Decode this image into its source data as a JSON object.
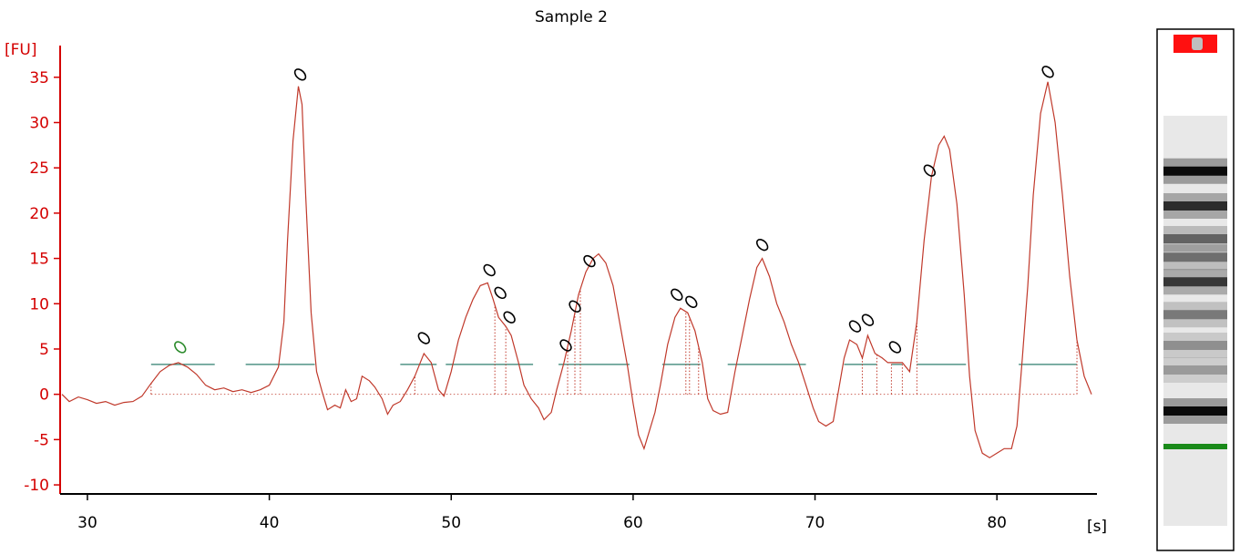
{
  "chart_data": {
    "type": "line",
    "title": "Sample 2",
    "y_unit": "[FU]",
    "x_unit": "[s]",
    "xlim": [
      28.5,
      85.5
    ],
    "ylim": [
      -11,
      38.5
    ],
    "xticks": [
      30,
      40,
      50,
      60,
      70,
      80
    ],
    "yticks": [
      -10,
      -5,
      0,
      5,
      10,
      15,
      20,
      25,
      30,
      35
    ],
    "line_color": "#c0392b",
    "axis_color": "#d40000",
    "series": [
      {
        "values": [
          [
            28.6,
            0.0
          ],
          [
            29.0,
            -0.8
          ],
          [
            29.5,
            -0.3
          ],
          [
            30.0,
            -0.6
          ],
          [
            30.5,
            -1.0
          ],
          [
            31.0,
            -0.8
          ],
          [
            31.5,
            -1.2
          ],
          [
            32.0,
            -0.9
          ],
          [
            32.5,
            -0.8
          ],
          [
            33.0,
            -0.2
          ],
          [
            33.5,
            1.2
          ],
          [
            34.0,
            2.5
          ],
          [
            34.5,
            3.2
          ],
          [
            35.0,
            3.5
          ],
          [
            35.5,
            3.0
          ],
          [
            36.0,
            2.2
          ],
          [
            36.5,
            1.0
          ],
          [
            37.0,
            0.5
          ],
          [
            37.5,
            0.7
          ],
          [
            38.0,
            0.3
          ],
          [
            38.5,
            0.5
          ],
          [
            39.0,
            0.2
          ],
          [
            39.5,
            0.5
          ],
          [
            40.0,
            1.0
          ],
          [
            40.5,
            3.0
          ],
          [
            40.8,
            8.0
          ],
          [
            41.0,
            17.0
          ],
          [
            41.3,
            28.0
          ],
          [
            41.6,
            34.0
          ],
          [
            41.8,
            32.0
          ],
          [
            42.0,
            22.0
          ],
          [
            42.3,
            9.0
          ],
          [
            42.6,
            2.5
          ],
          [
            42.9,
            0.3
          ],
          [
            43.2,
            -1.7
          ],
          [
            43.6,
            -1.2
          ],
          [
            43.9,
            -1.5
          ],
          [
            44.2,
            0.5
          ],
          [
            44.5,
            -0.8
          ],
          [
            44.8,
            -0.5
          ],
          [
            45.1,
            2.0
          ],
          [
            45.5,
            1.5
          ],
          [
            45.8,
            0.8
          ],
          [
            46.2,
            -0.5
          ],
          [
            46.5,
            -2.2
          ],
          [
            46.8,
            -1.2
          ],
          [
            47.2,
            -0.8
          ],
          [
            47.6,
            0.5
          ],
          [
            48.0,
            2.0
          ],
          [
            48.5,
            4.5
          ],
          [
            48.9,
            3.5
          ],
          [
            49.3,
            0.5
          ],
          [
            49.6,
            -0.2
          ],
          [
            50.0,
            2.5
          ],
          [
            50.4,
            6.0
          ],
          [
            50.8,
            8.5
          ],
          [
            51.2,
            10.5
          ],
          [
            51.6,
            12.0
          ],
          [
            52.0,
            12.3
          ],
          [
            52.3,
            10.5
          ],
          [
            52.6,
            8.5
          ],
          [
            53.0,
            7.5
          ],
          [
            53.3,
            6.5
          ],
          [
            53.7,
            3.5
          ],
          [
            54.0,
            1.0
          ],
          [
            54.4,
            -0.5
          ],
          [
            54.8,
            -1.5
          ],
          [
            55.1,
            -2.8
          ],
          [
            55.5,
            -2.0
          ],
          [
            55.8,
            0.5
          ],
          [
            56.2,
            3.5
          ],
          [
            56.6,
            7.0
          ],
          [
            57.0,
            11.0
          ],
          [
            57.4,
            13.5
          ],
          [
            57.8,
            15.0
          ],
          [
            58.1,
            15.5
          ],
          [
            58.5,
            14.5
          ],
          [
            58.9,
            12.0
          ],
          [
            59.3,
            7.5
          ],
          [
            59.7,
            3.0
          ],
          [
            60.0,
            -1.0
          ],
          [
            60.3,
            -4.5
          ],
          [
            60.6,
            -6.0
          ],
          [
            60.9,
            -4.0
          ],
          [
            61.2,
            -2.0
          ],
          [
            61.5,
            1.0
          ],
          [
            61.9,
            5.5
          ],
          [
            62.3,
            8.5
          ],
          [
            62.6,
            9.5
          ],
          [
            63.0,
            9.0
          ],
          [
            63.4,
            7.0
          ],
          [
            63.8,
            3.5
          ],
          [
            64.1,
            -0.5
          ],
          [
            64.4,
            -1.8
          ],
          [
            64.8,
            -2.2
          ],
          [
            65.2,
            -2.0
          ],
          [
            65.6,
            2.5
          ],
          [
            66.0,
            6.5
          ],
          [
            66.4,
            10.5
          ],
          [
            66.8,
            14.0
          ],
          [
            67.1,
            15.0
          ],
          [
            67.5,
            13.0
          ],
          [
            67.9,
            10.0
          ],
          [
            68.3,
            8.0
          ],
          [
            68.7,
            5.5
          ],
          [
            69.1,
            3.5
          ],
          [
            69.5,
            1.0
          ],
          [
            69.9,
            -1.5
          ],
          [
            70.2,
            -3.0
          ],
          [
            70.6,
            -3.5
          ],
          [
            71.0,
            -3.0
          ],
          [
            71.3,
            0.5
          ],
          [
            71.6,
            4.0
          ],
          [
            71.9,
            6.0
          ],
          [
            72.3,
            5.5
          ],
          [
            72.6,
            4.0
          ],
          [
            72.9,
            6.5
          ],
          [
            73.3,
            4.5
          ],
          [
            73.7,
            4.0
          ],
          [
            74.0,
            3.5
          ],
          [
            74.4,
            3.5
          ],
          [
            74.8,
            3.5
          ],
          [
            75.2,
            2.5
          ],
          [
            75.6,
            8.0
          ],
          [
            76.0,
            17.0
          ],
          [
            76.4,
            24.0
          ],
          [
            76.8,
            27.5
          ],
          [
            77.1,
            28.5
          ],
          [
            77.4,
            27.0
          ],
          [
            77.8,
            21.0
          ],
          [
            78.2,
            11.0
          ],
          [
            78.5,
            2.0
          ],
          [
            78.8,
            -4.0
          ],
          [
            79.2,
            -6.5
          ],
          [
            79.6,
            -7.0
          ],
          [
            80.0,
            -6.5
          ],
          [
            80.4,
            -6.0
          ],
          [
            80.8,
            -6.0
          ],
          [
            81.1,
            -3.5
          ],
          [
            81.4,
            4.0
          ],
          [
            81.7,
            12.0
          ],
          [
            82.0,
            22.0
          ],
          [
            82.4,
            31.0
          ],
          [
            82.8,
            34.5
          ],
          [
            83.2,
            30.0
          ],
          [
            83.6,
            22.0
          ],
          [
            84.0,
            13.0
          ],
          [
            84.4,
            6.0
          ],
          [
            84.8,
            2.0
          ],
          [
            85.2,
            0.0
          ]
        ]
      }
    ],
    "peak_segments": [
      {
        "x": [
          33.5,
          37.0
        ],
        "y": 3.3
      },
      {
        "x": [
          38.7,
          42.5
        ],
        "y": 3.3
      },
      {
        "x": [
          47.2,
          49.2
        ],
        "y": 3.3
      },
      {
        "x": [
          49.7,
          54.5
        ],
        "y": 3.3
      },
      {
        "x": [
          55.9,
          59.8
        ],
        "y": 3.3
      },
      {
        "x": [
          61.6,
          63.7
        ],
        "y": 3.3
      },
      {
        "x": [
          65.2,
          69.5
        ],
        "y": 3.3
      },
      {
        "x": [
          71.6,
          73.4
        ],
        "y": 3.3
      },
      {
        "x": [
          74.2,
          74.8
        ],
        "y": 3.3
      },
      {
        "x": [
          75.6,
          78.3
        ],
        "y": 3.3
      },
      {
        "x": [
          81.2,
          84.4
        ],
        "y": 3.3
      }
    ],
    "peak_boundaries": [
      33.5,
      48.0,
      49.5,
      52.4,
      53.0,
      56.4,
      56.8,
      57.1,
      62.9,
      63.1,
      63.6,
      72.6,
      73.4,
      74.2,
      74.8,
      75.6,
      84.4
    ],
    "peak_markers": [
      {
        "x": 35.1,
        "y": 5.2,
        "color": "#2a8a2a"
      },
      {
        "x": 41.7,
        "y": 35.3
      },
      {
        "x": 48.5,
        "y": 6.2
      },
      {
        "x": 52.1,
        "y": 13.7
      },
      {
        "x": 52.7,
        "y": 11.2
      },
      {
        "x": 53.2,
        "y": 8.5
      },
      {
        "x": 56.3,
        "y": 5.4
      },
      {
        "x": 56.8,
        "y": 9.7
      },
      {
        "x": 57.6,
        "y": 14.7
      },
      {
        "x": 62.4,
        "y": 11.0
      },
      {
        "x": 63.2,
        "y": 10.2
      },
      {
        "x": 67.1,
        "y": 16.5
      },
      {
        "x": 72.2,
        "y": 7.5
      },
      {
        "x": 72.9,
        "y": 8.2
      },
      {
        "x": 74.4,
        "y": 5.2
      },
      {
        "x": 76.3,
        "y": 24.7
      },
      {
        "x": 82.8,
        "y": 35.6
      }
    ],
    "gel_bands": [
      {
        "position": 0.135,
        "intensity": 0.95
      },
      {
        "position": 0.22,
        "intensity": 0.8
      },
      {
        "position": 0.3,
        "intensity": 0.55
      },
      {
        "position": 0.345,
        "intensity": 0.5
      },
      {
        "position": 0.405,
        "intensity": 0.75
      },
      {
        "position": 0.485,
        "intensity": 0.45
      },
      {
        "position": 0.56,
        "intensity": 0.35
      },
      {
        "position": 0.62,
        "intensity": 0.3
      },
      {
        "position": 0.72,
        "intensity": 0.95
      }
    ],
    "gel_marker_color": "#1a8a1a",
    "gel_top_color": "#ff1010"
  }
}
